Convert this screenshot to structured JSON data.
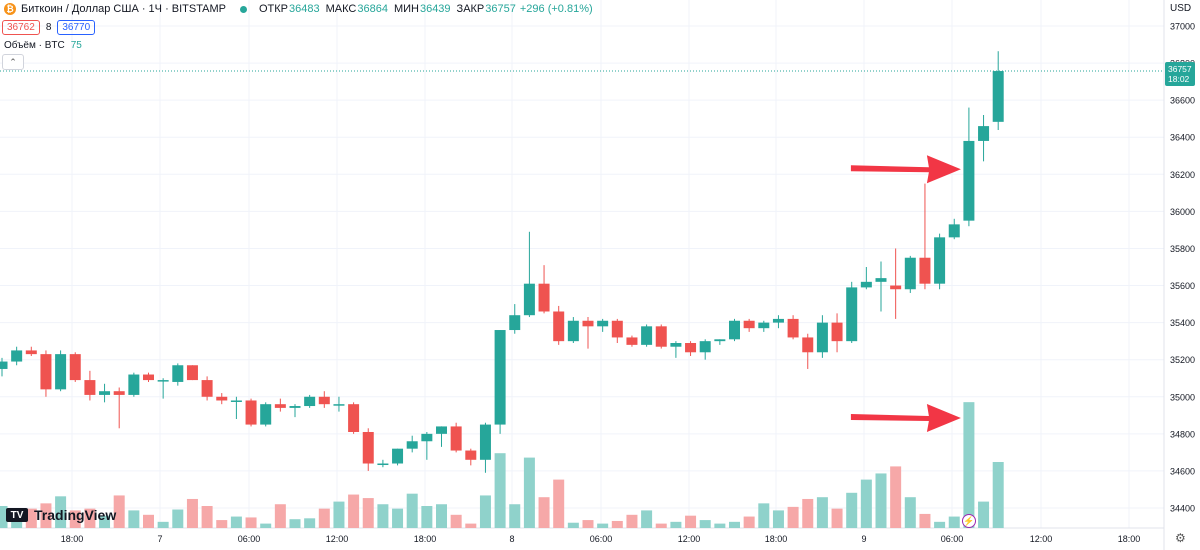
{
  "header": {
    "symbol_title": "Биткоин / Доллар США · 1Ч · BITSTAMP",
    "coin_glyph": "₿",
    "ohlc": [
      {
        "label": "ОТКР",
        "value": "36483"
      },
      {
        "label": "МАКС",
        "value": "36864"
      },
      {
        "label": "МИН",
        "value": "36439"
      },
      {
        "label": "ЗАКР",
        "value": "36757"
      }
    ],
    "change": "+296 (+0.81%)",
    "sell_price": "36762",
    "spread": "8",
    "buy_price": "36770",
    "volume_label": "Объём · BTC",
    "volume_value": "75",
    "collapse_glyph": "⌃"
  },
  "currency": "USD",
  "logo_text": "TradingView",
  "logo_mark": "TV",
  "price_tag": {
    "price": "36757",
    "countdown": "18:02"
  },
  "colors": {
    "up": "#26a69a",
    "down": "#ef5350",
    "vol_up": "#8fd2cb",
    "vol_down": "#f6a8a8",
    "arrow": "#f23645",
    "grid": "#f0f3fa"
  },
  "chart_data": {
    "type": "candlestick",
    "y_ticks": [
      34400,
      34600,
      34800,
      35000,
      35200,
      35400,
      35600,
      35800,
      36000,
      36200,
      36400,
      36600,
      36800,
      37000
    ],
    "x_ticks": [
      "18:00",
      "7",
      "06:00",
      "12:00",
      "18:00",
      "8",
      "06:00",
      "12:00",
      "18:00",
      "9",
      "06:00",
      "12:00",
      "18:00"
    ],
    "last_price": 36757,
    "candles": [
      {
        "o": 35150,
        "h": 35210,
        "l": 35110,
        "c": 35190,
        "v": 25
      },
      {
        "o": 35190,
        "h": 35270,
        "l": 35170,
        "c": 35250,
        "v": 18
      },
      {
        "o": 35250,
        "h": 35270,
        "l": 35220,
        "c": 35230,
        "v": 22
      },
      {
        "o": 35230,
        "h": 35250,
        "l": 35000,
        "c": 35040,
        "v": 28
      },
      {
        "o": 35040,
        "h": 35250,
        "l": 35030,
        "c": 35230,
        "v": 36
      },
      {
        "o": 35230,
        "h": 35240,
        "l": 35080,
        "c": 35090,
        "v": 20
      },
      {
        "o": 35090,
        "h": 35140,
        "l": 34980,
        "c": 35010,
        "v": 22
      },
      {
        "o": 35010,
        "h": 35070,
        "l": 34970,
        "c": 35030,
        "v": 14
      },
      {
        "o": 35030,
        "h": 35050,
        "l": 34830,
        "c": 35010,
        "v": 37
      },
      {
        "o": 35010,
        "h": 35130,
        "l": 35000,
        "c": 35120,
        "v": 20
      },
      {
        "o": 35120,
        "h": 35130,
        "l": 35080,
        "c": 35090,
        "v": 15
      },
      {
        "o": 35090,
        "h": 35100,
        "l": 34990,
        "c": 35090,
        "v": 7
      },
      {
        "o": 35080,
        "h": 35180,
        "l": 35060,
        "c": 35170,
        "v": 21
      },
      {
        "o": 35170,
        "h": 35170,
        "l": 35090,
        "c": 35090,
        "v": 33
      },
      {
        "o": 35090,
        "h": 35110,
        "l": 34980,
        "c": 35000,
        "v": 25
      },
      {
        "o": 35000,
        "h": 35020,
        "l": 34960,
        "c": 34980,
        "v": 9
      },
      {
        "o": 34980,
        "h": 35000,
        "l": 34880,
        "c": 34980,
        "v": 13
      },
      {
        "o": 34980,
        "h": 34990,
        "l": 34840,
        "c": 34850,
        "v": 12
      },
      {
        "o": 34850,
        "h": 34970,
        "l": 34840,
        "c": 34960,
        "v": 5
      },
      {
        "o": 34960,
        "h": 34990,
        "l": 34920,
        "c": 34940,
        "v": 27
      },
      {
        "o": 34940,
        "h": 34960,
        "l": 34890,
        "c": 34950,
        "v": 10
      },
      {
        "o": 34950,
        "h": 35010,
        "l": 34940,
        "c": 35000,
        "v": 11
      },
      {
        "o": 35000,
        "h": 35030,
        "l": 34940,
        "c": 34960,
        "v": 22
      },
      {
        "o": 34960,
        "h": 35000,
        "l": 34920,
        "c": 34960,
        "v": 30
      },
      {
        "o": 34960,
        "h": 34970,
        "l": 34800,
        "c": 34810,
        "v": 38
      },
      {
        "o": 34810,
        "h": 34830,
        "l": 34600,
        "c": 34640,
        "v": 34
      },
      {
        "o": 34640,
        "h": 34660,
        "l": 34620,
        "c": 34640,
        "v": 27
      },
      {
        "o": 34640,
        "h": 34720,
        "l": 34630,
        "c": 34720,
        "v": 22
      },
      {
        "o": 34720,
        "h": 34790,
        "l": 34700,
        "c": 34760,
        "v": 39
      },
      {
        "o": 34760,
        "h": 34810,
        "l": 34660,
        "c": 34800,
        "v": 25
      },
      {
        "o": 34800,
        "h": 34840,
        "l": 34730,
        "c": 34840,
        "v": 27
      },
      {
        "o": 34840,
        "h": 34860,
        "l": 34700,
        "c": 34710,
        "v": 15
      },
      {
        "o": 34710,
        "h": 34720,
        "l": 34630,
        "c": 34660,
        "v": 5
      },
      {
        "o": 34660,
        "h": 34860,
        "l": 34590,
        "c": 34850,
        "v": 37
      },
      {
        "o": 34850,
        "h": 35360,
        "l": 34800,
        "c": 35360,
        "v": 85
      },
      {
        "o": 35360,
        "h": 35500,
        "l": 35340,
        "c": 35440,
        "v": 27
      },
      {
        "o": 35440,
        "h": 35890,
        "l": 35430,
        "c": 35610,
        "v": 80
      },
      {
        "o": 35610,
        "h": 35710,
        "l": 35450,
        "c": 35460,
        "v": 35
      },
      {
        "o": 35460,
        "h": 35490,
        "l": 35280,
        "c": 35300,
        "v": 55
      },
      {
        "o": 35300,
        "h": 35430,
        "l": 35290,
        "c": 35410,
        "v": 6
      },
      {
        "o": 35410,
        "h": 35430,
        "l": 35260,
        "c": 35380,
        "v": 9
      },
      {
        "o": 35380,
        "h": 35420,
        "l": 35350,
        "c": 35410,
        "v": 5
      },
      {
        "o": 35410,
        "h": 35420,
        "l": 35290,
        "c": 35320,
        "v": 8
      },
      {
        "o": 35320,
        "h": 35330,
        "l": 35270,
        "c": 35280,
        "v": 15
      },
      {
        "o": 35280,
        "h": 35390,
        "l": 35270,
        "c": 35380,
        "v": 20
      },
      {
        "o": 35380,
        "h": 35390,
        "l": 35260,
        "c": 35270,
        "v": 5
      },
      {
        "o": 35270,
        "h": 35300,
        "l": 35210,
        "c": 35290,
        "v": 7
      },
      {
        "o": 35290,
        "h": 35300,
        "l": 35220,
        "c": 35240,
        "v": 14
      },
      {
        "o": 35240,
        "h": 35310,
        "l": 35200,
        "c": 35300,
        "v": 9
      },
      {
        "o": 35300,
        "h": 35310,
        "l": 35280,
        "c": 35310,
        "v": 5
      },
      {
        "o": 35310,
        "h": 35420,
        "l": 35300,
        "c": 35410,
        "v": 7
      },
      {
        "o": 35410,
        "h": 35420,
        "l": 35350,
        "c": 35370,
        "v": 13
      },
      {
        "o": 35370,
        "h": 35410,
        "l": 35350,
        "c": 35400,
        "v": 28
      },
      {
        "o": 35400,
        "h": 35440,
        "l": 35370,
        "c": 35420,
        "v": 20
      },
      {
        "o": 35420,
        "h": 35440,
        "l": 35310,
        "c": 35320,
        "v": 24
      },
      {
        "o": 35320,
        "h": 35340,
        "l": 35150,
        "c": 35240,
        "v": 33
      },
      {
        "o": 35240,
        "h": 35440,
        "l": 35210,
        "c": 35400,
        "v": 35
      },
      {
        "o": 35400,
        "h": 35450,
        "l": 35240,
        "c": 35300,
        "v": 22
      },
      {
        "o": 35300,
        "h": 35620,
        "l": 35290,
        "c": 35590,
        "v": 40
      },
      {
        "o": 35590,
        "h": 35700,
        "l": 35580,
        "c": 35620,
        "v": 55
      },
      {
        "o": 35620,
        "h": 35730,
        "l": 35460,
        "c": 35640,
        "v": 62
      },
      {
        "o": 35600,
        "h": 35800,
        "l": 35420,
        "c": 35580,
        "v": 70
      },
      {
        "o": 35580,
        "h": 35760,
        "l": 35560,
        "c": 35750,
        "v": 35
      },
      {
        "o": 35750,
        "h": 36150,
        "l": 35580,
        "c": 35610,
        "v": 16
      },
      {
        "o": 35610,
        "h": 35880,
        "l": 35580,
        "c": 35860,
        "v": 7
      },
      {
        "o": 35860,
        "h": 35960,
        "l": 35850,
        "c": 35930,
        "v": 13
      },
      {
        "o": 35950,
        "h": 36560,
        "l": 35920,
        "c": 36380,
        "v": 143
      },
      {
        "o": 36380,
        "h": 36520,
        "l": 36270,
        "c": 36460,
        "v": 30
      },
      {
        "o": 36483,
        "h": 36864,
        "l": 36439,
        "c": 36757,
        "v": 75
      }
    ],
    "annotations": [
      {
        "type": "arrow",
        "anchor": "price",
        "target_candle": 66,
        "price": 36200
      },
      {
        "type": "arrow",
        "anchor": "volume",
        "target_candle": 66,
        "volume": 150
      }
    ]
  }
}
